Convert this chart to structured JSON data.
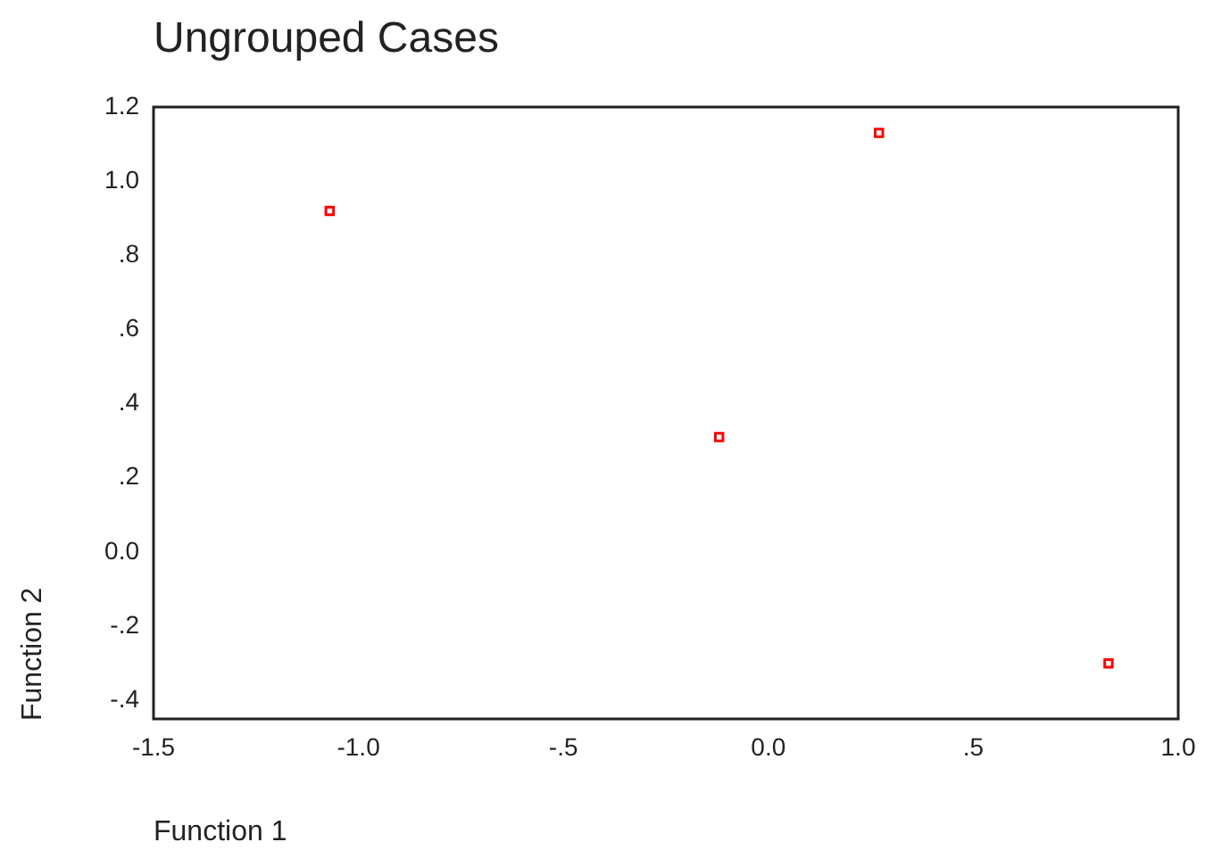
{
  "chart_data": {
    "type": "scatter",
    "title": "Ungrouped Cases",
    "xlabel": "Function 1",
    "ylabel": "Function 2",
    "x": [
      -1.07,
      0.27,
      -0.12,
      0.83
    ],
    "values": [
      0.92,
      1.13,
      0.31,
      -0.3
    ],
    "color": "#ff0000",
    "marker": "square",
    "grid": false,
    "legend": false,
    "xlim": [
      -1.5,
      1.0
    ],
    "xticks": [
      {
        "value": -1.5,
        "label": "-1.5"
      },
      {
        "value": -1.0,
        "label": "-1.0"
      },
      {
        "value": -0.5,
        "label": "-.5"
      },
      {
        "value": 0,
        "label": "0.0"
      },
      {
        "value": 0.5,
        "label": ".5"
      },
      {
        "value": 1.0,
        "label": "1.0"
      }
    ],
    "ylim": [
      -0.45,
      1.2
    ],
    "yticks": [
      {
        "value": -0.4,
        "label": "-.4"
      },
      {
        "value": -0.2,
        "label": "-.2"
      },
      {
        "value": 0,
        "label": "0.0"
      },
      {
        "value": 0.2,
        "label": ".2"
      },
      {
        "value": 0.4,
        "label": ".4"
      },
      {
        "value": 0.6,
        "label": ".6"
      },
      {
        "value": 0.8,
        "label": ".8"
      },
      {
        "value": 1.0,
        "label": "1.0"
      },
      {
        "value": 1.2,
        "label": "1.2"
      }
    ]
  }
}
